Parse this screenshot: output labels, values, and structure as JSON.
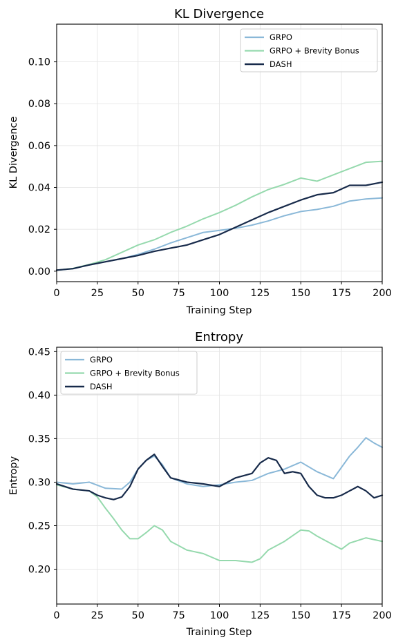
{
  "colors": {
    "grpo": "#8ab8d8",
    "brevity": "#95d9ad",
    "dash": "#172a4a",
    "grid": "#e6e6e6",
    "frame": "#000000"
  },
  "chart_data": [
    {
      "type": "line",
      "title": "KL Divergence",
      "xlabel": "Training Step",
      "ylabel": "KL Divergence",
      "xlim": [
        0,
        200
      ],
      "ylim": [
        -0.005,
        0.118
      ],
      "xticks": [
        0,
        25,
        50,
        75,
        100,
        125,
        150,
        175,
        200
      ],
      "xtick_labels": [
        "0",
        "25",
        "50",
        "75",
        "100",
        "125",
        "150",
        "175",
        "200"
      ],
      "yticks": [
        0.0,
        0.02,
        0.04,
        0.06,
        0.08,
        0.1
      ],
      "ytick_labels": [
        "0.00",
        "0.02",
        "0.04",
        "0.06",
        "0.08",
        "0.10"
      ],
      "grid": true,
      "legend": {
        "position": "top-right",
        "entries": [
          "GRPO",
          "GRPO + Brevity Bonus",
          "DASH"
        ]
      },
      "series": [
        {
          "name": "GRPO",
          "x": [
            0,
            10,
            20,
            30,
            40,
            50,
            60,
            70,
            80,
            90,
            100,
            110,
            120,
            130,
            140,
            150,
            160,
            170,
            180,
            190,
            200
          ],
          "y": [
            0.0005,
            0.0012,
            0.003,
            0.0045,
            0.006,
            0.008,
            0.0105,
            0.0135,
            0.016,
            0.0185,
            0.0195,
            0.0205,
            0.022,
            0.024,
            0.0265,
            0.0285,
            0.0295,
            0.031,
            0.0335,
            0.0345,
            0.035
          ]
        },
        {
          "name": "GRPO + Brevity Bonus",
          "x": [
            0,
            10,
            20,
            30,
            40,
            50,
            60,
            70,
            80,
            90,
            100,
            110,
            120,
            130,
            140,
            150,
            160,
            170,
            180,
            190,
            200
          ],
          "y": [
            0.0005,
            0.0013,
            0.0032,
            0.0055,
            0.009,
            0.0125,
            0.015,
            0.0185,
            0.0215,
            0.025,
            0.028,
            0.0315,
            0.0355,
            0.039,
            0.0415,
            0.0445,
            0.043,
            0.046,
            0.049,
            0.052,
            0.0525
          ]
        },
        {
          "name": "DASH",
          "x": [
            0,
            10,
            20,
            30,
            40,
            50,
            60,
            70,
            80,
            90,
            100,
            110,
            120,
            130,
            140,
            150,
            160,
            170,
            180,
            190,
            200
          ],
          "y": [
            0.0005,
            0.0012,
            0.003,
            0.0045,
            0.006,
            0.0075,
            0.0095,
            0.011,
            0.0125,
            0.015,
            0.0175,
            0.021,
            0.0245,
            0.028,
            0.031,
            0.034,
            0.0365,
            0.0375,
            0.041,
            0.041,
            0.0425
          ]
        }
      ]
    },
    {
      "type": "line",
      "title": "Entropy",
      "xlabel": "Training Step",
      "ylabel": "Entropy",
      "xlim": [
        0,
        200
      ],
      "ylim": [
        0.16,
        0.455
      ],
      "xticks": [
        0,
        25,
        50,
        75,
        100,
        125,
        150,
        175,
        200
      ],
      "xtick_labels": [
        "0",
        "25",
        "50",
        "75",
        "100",
        "125",
        "150",
        "175",
        "200"
      ],
      "yticks": [
        0.2,
        0.25,
        0.3,
        0.35,
        0.4,
        0.45
      ],
      "ytick_labels": [
        "0.20",
        "0.25",
        "0.30",
        "0.35",
        "0.40",
        "0.45"
      ],
      "grid": true,
      "legend": {
        "position": "top-left",
        "entries": [
          "GRPO",
          "GRPO + Brevity Bonus",
          "DASH"
        ]
      },
      "series": [
        {
          "name": "GRPO",
          "x": [
            0,
            10,
            20,
            30,
            40,
            45,
            50,
            55,
            60,
            65,
            70,
            80,
            90,
            100,
            110,
            120,
            130,
            140,
            150,
            160,
            170,
            180,
            185,
            190,
            195,
            200
          ],
          "y": [
            0.3,
            0.298,
            0.3,
            0.293,
            0.292,
            0.3,
            0.315,
            0.325,
            0.33,
            0.32,
            0.305,
            0.298,
            0.295,
            0.297,
            0.3,
            0.302,
            0.31,
            0.315,
            0.323,
            0.312,
            0.304,
            0.33,
            0.34,
            0.351,
            0.345,
            0.34
          ]
        },
        {
          "name": "GRPO + Brevity Bonus",
          "x": [
            0,
            10,
            20,
            25,
            30,
            35,
            40,
            45,
            50,
            55,
            60,
            65,
            70,
            80,
            90,
            100,
            110,
            120,
            125,
            130,
            140,
            150,
            155,
            160,
            170,
            175,
            180,
            190,
            200
          ],
          "y": [
            0.297,
            0.292,
            0.29,
            0.283,
            0.27,
            0.258,
            0.245,
            0.235,
            0.235,
            0.242,
            0.25,
            0.245,
            0.232,
            0.222,
            0.218,
            0.21,
            0.21,
            0.208,
            0.212,
            0.222,
            0.232,
            0.245,
            0.244,
            0.238,
            0.228,
            0.223,
            0.23,
            0.236,
            0.232
          ]
        },
        {
          "name": "DASH",
          "x": [
            0,
            10,
            20,
            25,
            30,
            35,
            40,
            45,
            50,
            55,
            60,
            65,
            70,
            80,
            90,
            100,
            110,
            120,
            125,
            130,
            135,
            140,
            145,
            150,
            155,
            160,
            165,
            170,
            175,
            180,
            185,
            190,
            195,
            200
          ],
          "y": [
            0.298,
            0.292,
            0.29,
            0.285,
            0.282,
            0.28,
            0.283,
            0.295,
            0.315,
            0.325,
            0.332,
            0.318,
            0.305,
            0.3,
            0.298,
            0.295,
            0.305,
            0.31,
            0.322,
            0.328,
            0.325,
            0.31,
            0.312,
            0.31,
            0.295,
            0.285,
            0.282,
            0.282,
            0.285,
            0.29,
            0.295,
            0.29,
            0.282,
            0.285
          ]
        }
      ]
    }
  ]
}
